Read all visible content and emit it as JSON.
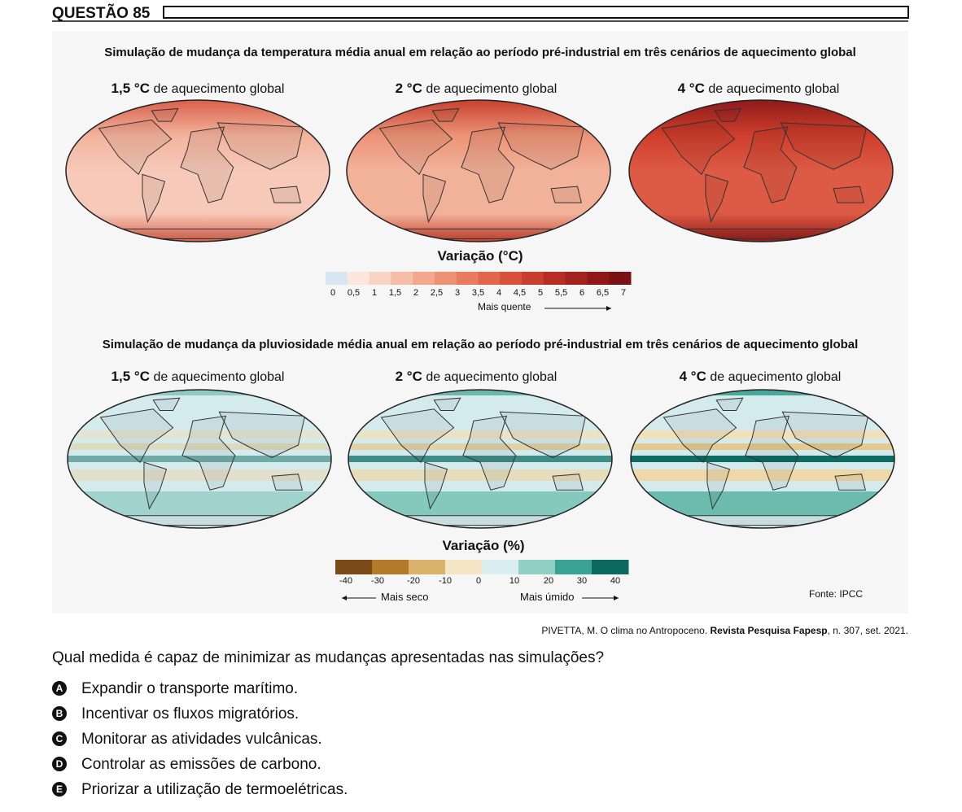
{
  "header": {
    "title": "QUESTÃO 85"
  },
  "temperature": {
    "title": "Simulação de mudança da temperatura média anual em relação ao período pré-industrial em três cenários de aquecimento global",
    "maps": [
      {
        "degree": "1,5 °C",
        "suffix": "de aquecimento global"
      },
      {
        "degree": "2 °C",
        "suffix": "de aquecimento global"
      },
      {
        "degree": "4 °C",
        "suffix": "de aquecimento global"
      }
    ],
    "legend": {
      "title": "Variação (°C)",
      "ticks": [
        "0",
        "0,5",
        "1",
        "1,5",
        "2",
        "2,5",
        "3",
        "3,5",
        "4",
        "4,5",
        "5",
        "5,5",
        "6",
        "6,5",
        "7"
      ],
      "arrow": "Mais quente"
    }
  },
  "precipitation": {
    "title": "Simulação de mudança da pluviosidade média anual em relação ao período pré-industrial em três cenários de aquecimento global",
    "maps": [
      {
        "degree": "1,5 °C",
        "suffix": "de aquecimento global"
      },
      {
        "degree": "2 °C",
        "suffix": "de aquecimento global"
      },
      {
        "degree": "4 °C",
        "suffix": "de aquecimento global"
      }
    ],
    "legend": {
      "title": "Variação (%)",
      "ticks": [
        "-40",
        "-30",
        "-20",
        "-10",
        "0",
        "10",
        "20",
        "30",
        "40"
      ],
      "dry": "Mais seco",
      "wet": "Mais úmido"
    }
  },
  "source": "Fonte: IPCC",
  "citation": {
    "author": "PIVETTA, M. O clima no Antropoceno.",
    "journal": "Revista Pesquisa Fapesp",
    "details": ", n. 307, set. 2021."
  },
  "question": "Qual medida é capaz de minimizar as mudanças apresentadas nas simulações?",
  "options": [
    {
      "letter": "A",
      "text": "Expandir o transporte marítimo."
    },
    {
      "letter": "B",
      "text": "Incentivar os fluxos migratórios."
    },
    {
      "letter": "C",
      "text": "Monitorar as atividades vulcânicas."
    },
    {
      "letter": "D",
      "text": "Controlar as emissões de carbono."
    },
    {
      "letter": "E",
      "text": "Priorizar a utilização de termoelétricas."
    }
  ]
}
